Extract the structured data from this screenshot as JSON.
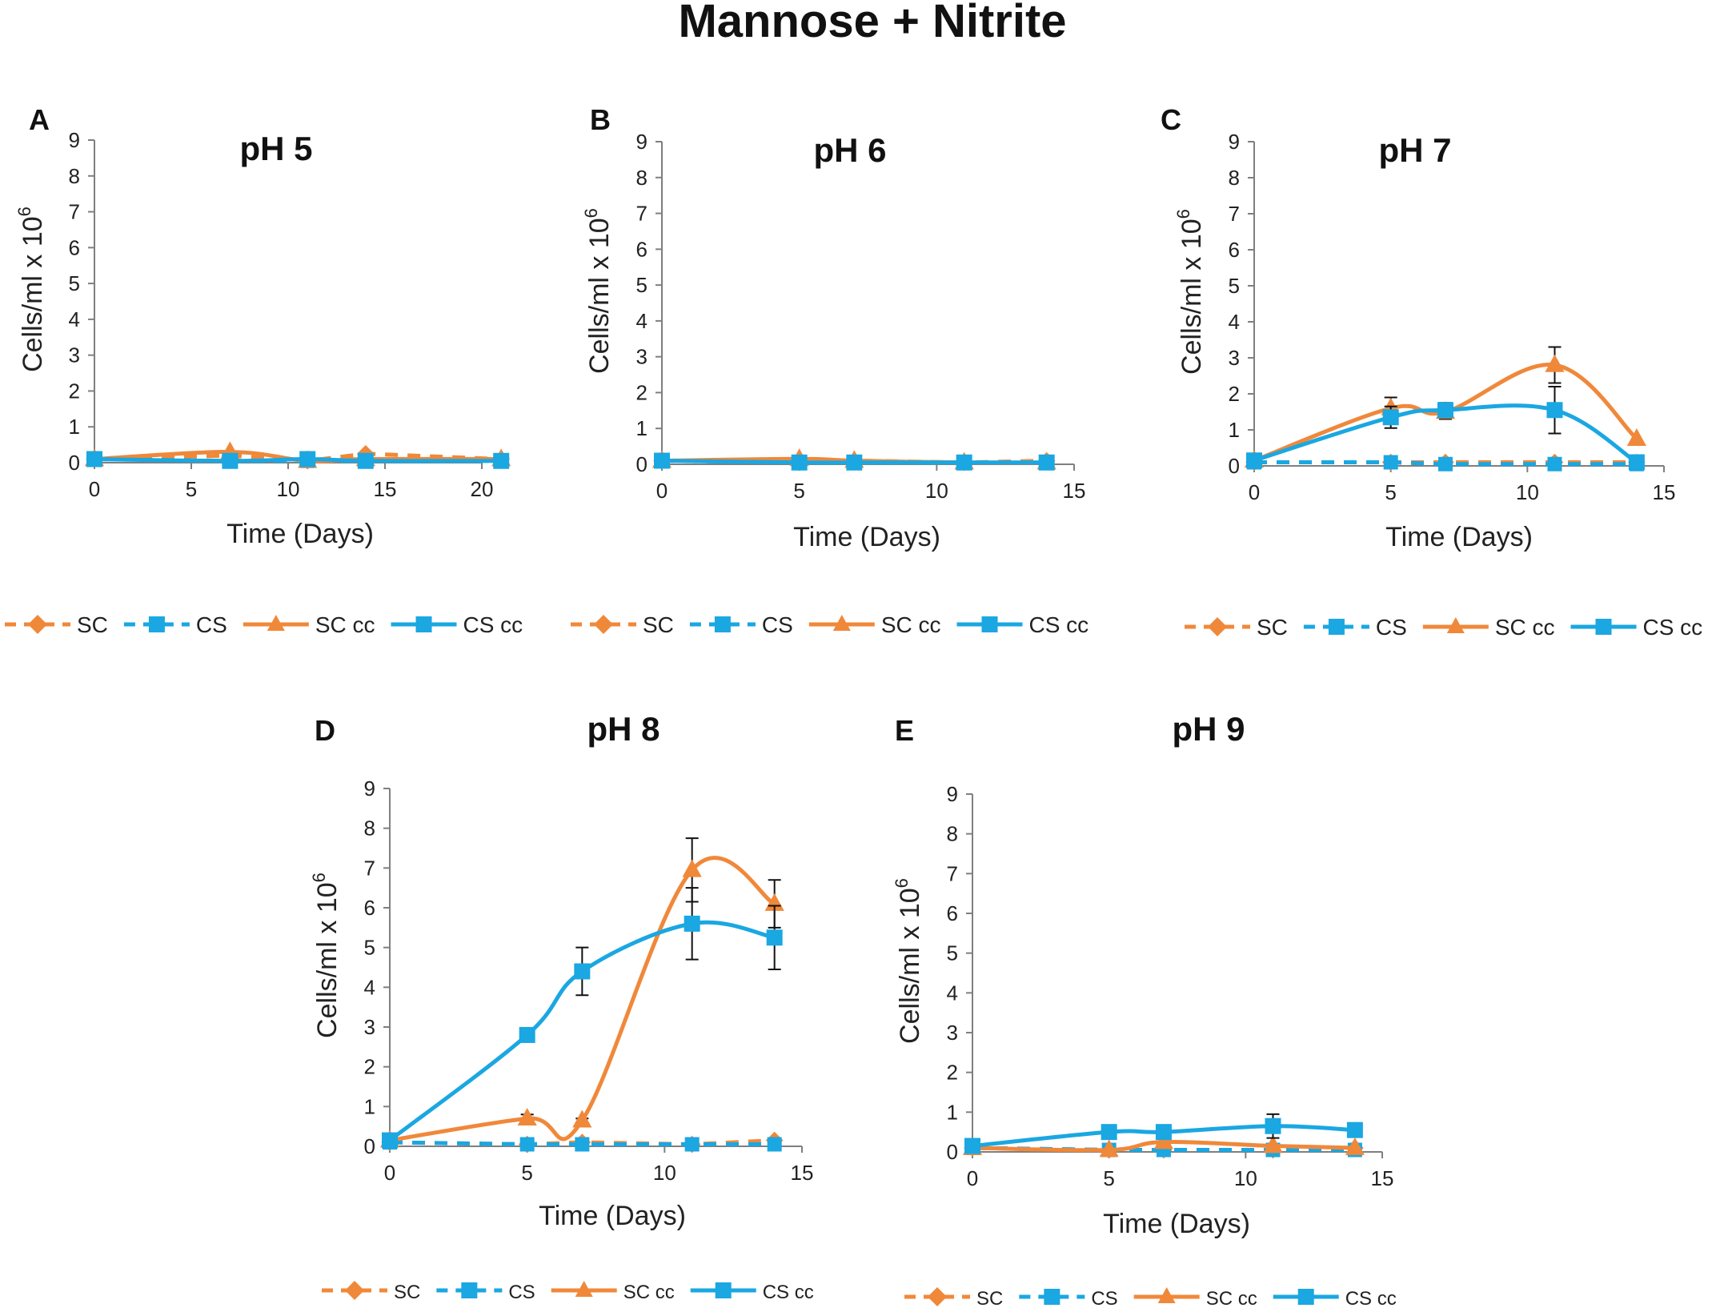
{
  "figure": {
    "title": "Mannose + Nitrite"
  },
  "colors": {
    "orange": "#F0883A",
    "blue": "#1AA7E2",
    "axis": "#7F7F7F",
    "text": "#222222",
    "error": "#111111"
  },
  "chart_data": [
    {
      "panel": "A",
      "type": "line",
      "title": "pH 5",
      "xlabel": "Time (Days)",
      "ylabel": "Cells/ml x 10",
      "ylabel_sup": "6",
      "xlim": [
        0,
        22
      ],
      "ylim": [
        0,
        9
      ],
      "xticks": [
        0,
        5,
        10,
        15,
        20
      ],
      "yticks": [
        0,
        1,
        2,
        3,
        4,
        5,
        6,
        7,
        8,
        9
      ],
      "legend": [
        "SC",
        "CS",
        "SC cc",
        "CS cc"
      ],
      "series": [
        {
          "name": "SC",
          "x": [
            0,
            7,
            11,
            14,
            21
          ],
          "y": [
            0.1,
            0.2,
            0.05,
            0.25,
            0.1
          ],
          "err": [
            0,
            0,
            0,
            0,
            0
          ]
        },
        {
          "name": "CS",
          "x": [
            0,
            7,
            11,
            14,
            21
          ],
          "y": [
            0.1,
            0.05,
            0.05,
            0.05,
            0.05
          ],
          "err": [
            0,
            0,
            0,
            0,
            0
          ]
        },
        {
          "name": "SC cc",
          "x": [
            0,
            7,
            11,
            14,
            21
          ],
          "y": [
            0.1,
            0.3,
            0.05,
            0.1,
            0.1
          ],
          "err": [
            0,
            0,
            0,
            0,
            0
          ]
        },
        {
          "name": "CS cc",
          "x": [
            0,
            7,
            11,
            14,
            21
          ],
          "y": [
            0.1,
            0.05,
            0.1,
            0.05,
            0.05
          ],
          "err": [
            0,
            0,
            0,
            0,
            0
          ]
        }
      ]
    },
    {
      "panel": "B",
      "type": "line",
      "title": "pH 6",
      "xlabel": "Time (Days)",
      "ylabel": "Cells/ml x 10",
      "ylabel_sup": "6",
      "xlim": [
        0,
        15
      ],
      "ylim": [
        0,
        9
      ],
      "xticks": [
        0,
        5,
        10,
        15
      ],
      "yticks": [
        0,
        1,
        2,
        3,
        4,
        5,
        6,
        7,
        8,
        9
      ],
      "legend": [
        "SC",
        "CS",
        "SC cc",
        "CS cc"
      ],
      "series": [
        {
          "name": "SC",
          "x": [
            0,
            5,
            7,
            11,
            14
          ],
          "y": [
            0.1,
            0.1,
            0.1,
            0.05,
            0.1
          ],
          "err": [
            0,
            0,
            0,
            0,
            0
          ]
        },
        {
          "name": "CS",
          "x": [
            0,
            5,
            7,
            11,
            14
          ],
          "y": [
            0.1,
            0.05,
            0.05,
            0.05,
            0.05
          ],
          "err": [
            0,
            0,
            0,
            0,
            0
          ]
        },
        {
          "name": "SC cc",
          "x": [
            0,
            5,
            7,
            11,
            14
          ],
          "y": [
            0.1,
            0.15,
            0.1,
            0.05,
            0.05
          ],
          "err": [
            0,
            0,
            0,
            0,
            0
          ]
        },
        {
          "name": "CS cc",
          "x": [
            0,
            5,
            7,
            11,
            14
          ],
          "y": [
            0.1,
            0.05,
            0.05,
            0.05,
            0.05
          ],
          "err": [
            0,
            0,
            0,
            0,
            0
          ]
        }
      ]
    },
    {
      "panel": "C",
      "type": "line",
      "title": "pH 7",
      "xlabel": "Time (Days)",
      "ylabel": "Cells/ml x 10",
      "ylabel_sup": "6",
      "xlim": [
        0,
        15
      ],
      "ylim": [
        0,
        9
      ],
      "xticks": [
        0,
        5,
        10,
        15
      ],
      "yticks": [
        0,
        1,
        2,
        3,
        4,
        5,
        6,
        7,
        8,
        9
      ],
      "legend": [
        "SC",
        "CS",
        "SC cc",
        "CS cc"
      ],
      "series": [
        {
          "name": "SC",
          "x": [
            0,
            5,
            7,
            11,
            14
          ],
          "y": [
            0.1,
            0.1,
            0.1,
            0.1,
            0.1
          ],
          "err": [
            0,
            0,
            0,
            0,
            0
          ]
        },
        {
          "name": "CS",
          "x": [
            0,
            5,
            7,
            11,
            14
          ],
          "y": [
            0.1,
            0.1,
            0.05,
            0.05,
            0.05
          ],
          "err": [
            0,
            0,
            0,
            0,
            0
          ]
        },
        {
          "name": "SC cc",
          "x": [
            0,
            5,
            7,
            11,
            14
          ],
          "y": [
            0.15,
            1.6,
            1.5,
            2.8,
            0.75
          ],
          "err": [
            0,
            0.3,
            0.2,
            0.5,
            0
          ]
        },
        {
          "name": "CS cc",
          "x": [
            0,
            5,
            7,
            11,
            14
          ],
          "y": [
            0.15,
            1.35,
            1.55,
            1.55,
            0.1
          ],
          "err": [
            0,
            0.3,
            0.2,
            0.65,
            0
          ]
        }
      ]
    },
    {
      "panel": "D",
      "type": "line",
      "title": "pH 8",
      "xlabel": "Time (Days)",
      "ylabel": "Cells/ml x 10",
      "ylabel_sup": "6",
      "xlim": [
        0,
        15
      ],
      "ylim": [
        0,
        9
      ],
      "xticks": [
        0,
        5,
        10,
        15
      ],
      "yticks": [
        0,
        1,
        2,
        3,
        4,
        5,
        6,
        7,
        8,
        9
      ],
      "legend": [
        "SC",
        "CS",
        "SC cc",
        "CS cc"
      ],
      "series": [
        {
          "name": "SC",
          "x": [
            0,
            5,
            7,
            11,
            14
          ],
          "y": [
            0.1,
            0.05,
            0.1,
            0.05,
            0.15
          ],
          "err": [
            0,
            0,
            0,
            0,
            0
          ]
        },
        {
          "name": "CS",
          "x": [
            0,
            5,
            7,
            11,
            14
          ],
          "y": [
            0.1,
            0.05,
            0.05,
            0.05,
            0.05
          ],
          "err": [
            0,
            0,
            0,
            0,
            0
          ]
        },
        {
          "name": "SC cc",
          "x": [
            0,
            5,
            7,
            11,
            14
          ],
          "y": [
            0.15,
            0.7,
            0.65,
            6.95,
            6.1
          ],
          "err": [
            0,
            0.1,
            0.05,
            0.8,
            0.6
          ]
        },
        {
          "name": "CS cc",
          "x": [
            0,
            5,
            7,
            11,
            14
          ],
          "y": [
            0.15,
            2.8,
            4.4,
            5.6,
            5.25
          ],
          "err": [
            0,
            0,
            0.6,
            0.9,
            0.8
          ]
        }
      ]
    },
    {
      "panel": "E",
      "type": "line",
      "title": "pH 9",
      "xlabel": "Time (Days)",
      "ylabel": "Cells/ml x 10",
      "ylabel_sup": "6",
      "xlim": [
        0,
        15
      ],
      "ylim": [
        0,
        9
      ],
      "xticks": [
        0,
        5,
        10,
        15
      ],
      "yticks": [
        0,
        1,
        2,
        3,
        4,
        5,
        6,
        7,
        8,
        9
      ],
      "legend": [
        "SC",
        "CS",
        "SC cc",
        "CS cc"
      ],
      "series": [
        {
          "name": "SC",
          "x": [
            0,
            5,
            7,
            11,
            14
          ],
          "y": [
            0.1,
            0.05,
            0.05,
            0.05,
            0.1
          ],
          "err": [
            0,
            0,
            0,
            0,
            0
          ]
        },
        {
          "name": "CS",
          "x": [
            0,
            5,
            7,
            11,
            14
          ],
          "y": [
            0.1,
            0.05,
            0.05,
            0.05,
            0.05
          ],
          "err": [
            0,
            0,
            0,
            0,
            0
          ]
        },
        {
          "name": "SC cc",
          "x": [
            0,
            5,
            7,
            11,
            14
          ],
          "y": [
            0.1,
            0.05,
            0.25,
            0.15,
            0.1
          ],
          "err": [
            0,
            0,
            0,
            0,
            0
          ]
        },
        {
          "name": "CS cc",
          "x": [
            0,
            5,
            7,
            11,
            14
          ],
          "y": [
            0.15,
            0.5,
            0.5,
            0.65,
            0.55
          ],
          "err": [
            0,
            0,
            0,
            0.3,
            0
          ]
        }
      ]
    }
  ]
}
